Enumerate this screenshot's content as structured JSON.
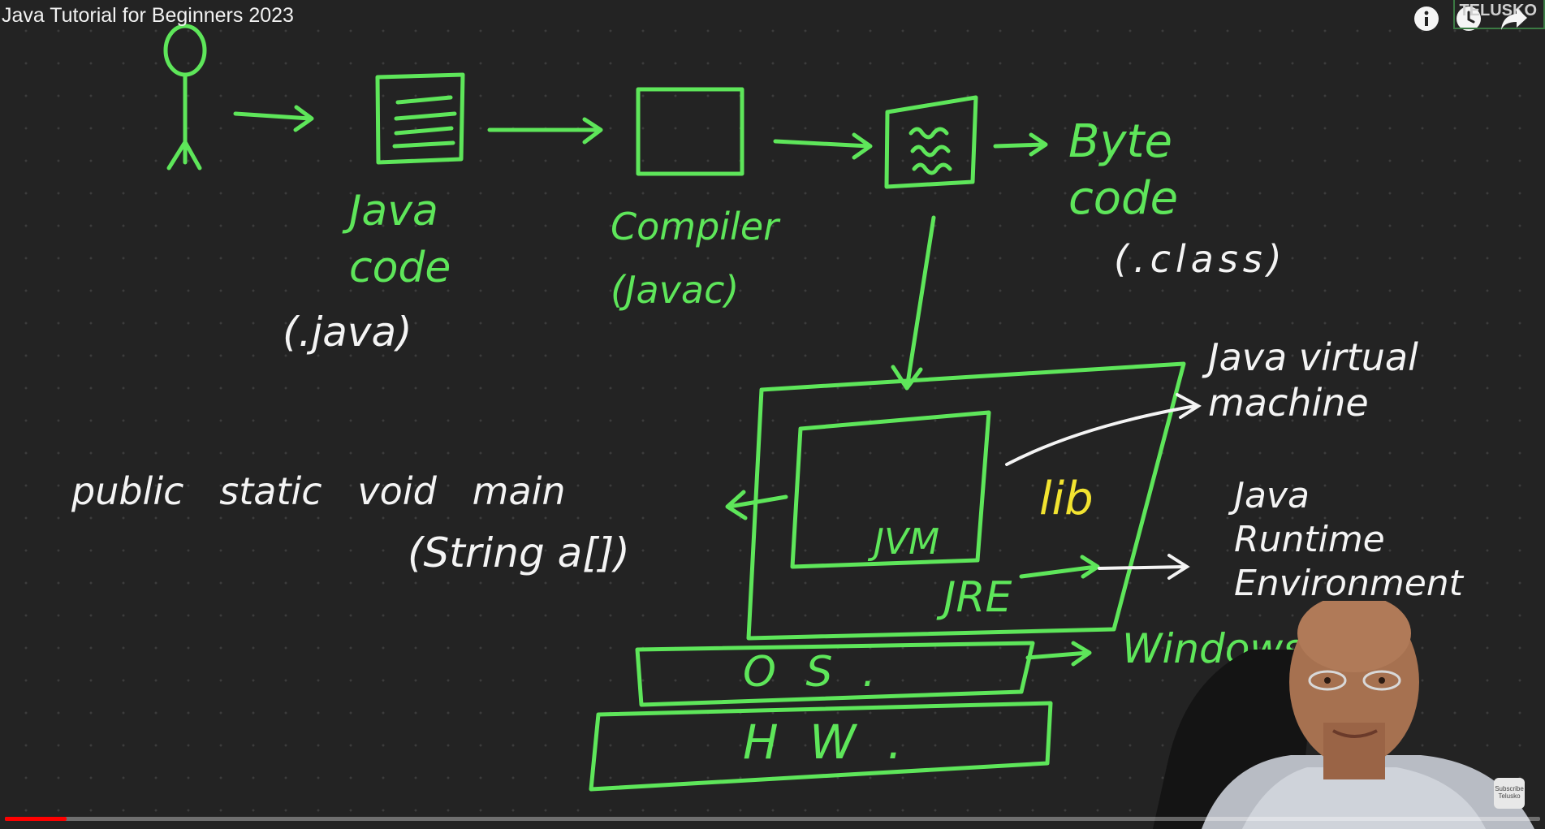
{
  "player": {
    "title": "Java Tutorial for Beginners 2023",
    "brand": "TELUSKO",
    "progress_fraction": 0.04,
    "colors": {
      "progress": "#ff0000",
      "chalk_green": "#5ee65a",
      "chalk_white": "#f4f4f4",
      "chalk_yellow": "#f2e330"
    },
    "icons": [
      "info-icon",
      "watch-later-icon",
      "share-icon"
    ],
    "subscribe": {
      "line1": "Subscribe",
      "line2": "Telusko"
    }
  },
  "board": {
    "java_code": "Java\ncode",
    "java_ext": "(.java)",
    "compiler": "Compiler\n(Javac)",
    "byte_code": "Byte\ncode",
    "class_ext": "(.class)",
    "jvm_label": "Java virtual\nmachine",
    "jre_label": "Java\nRuntime\nEnvironment",
    "main_line1": "public   static   void   main",
    "main_line2": "(String a[])",
    "jvm": "JVM",
    "lib": "lib",
    "jre": "JRE",
    "os": "O S .",
    "hw": "H W .",
    "windows": "Windows"
  }
}
